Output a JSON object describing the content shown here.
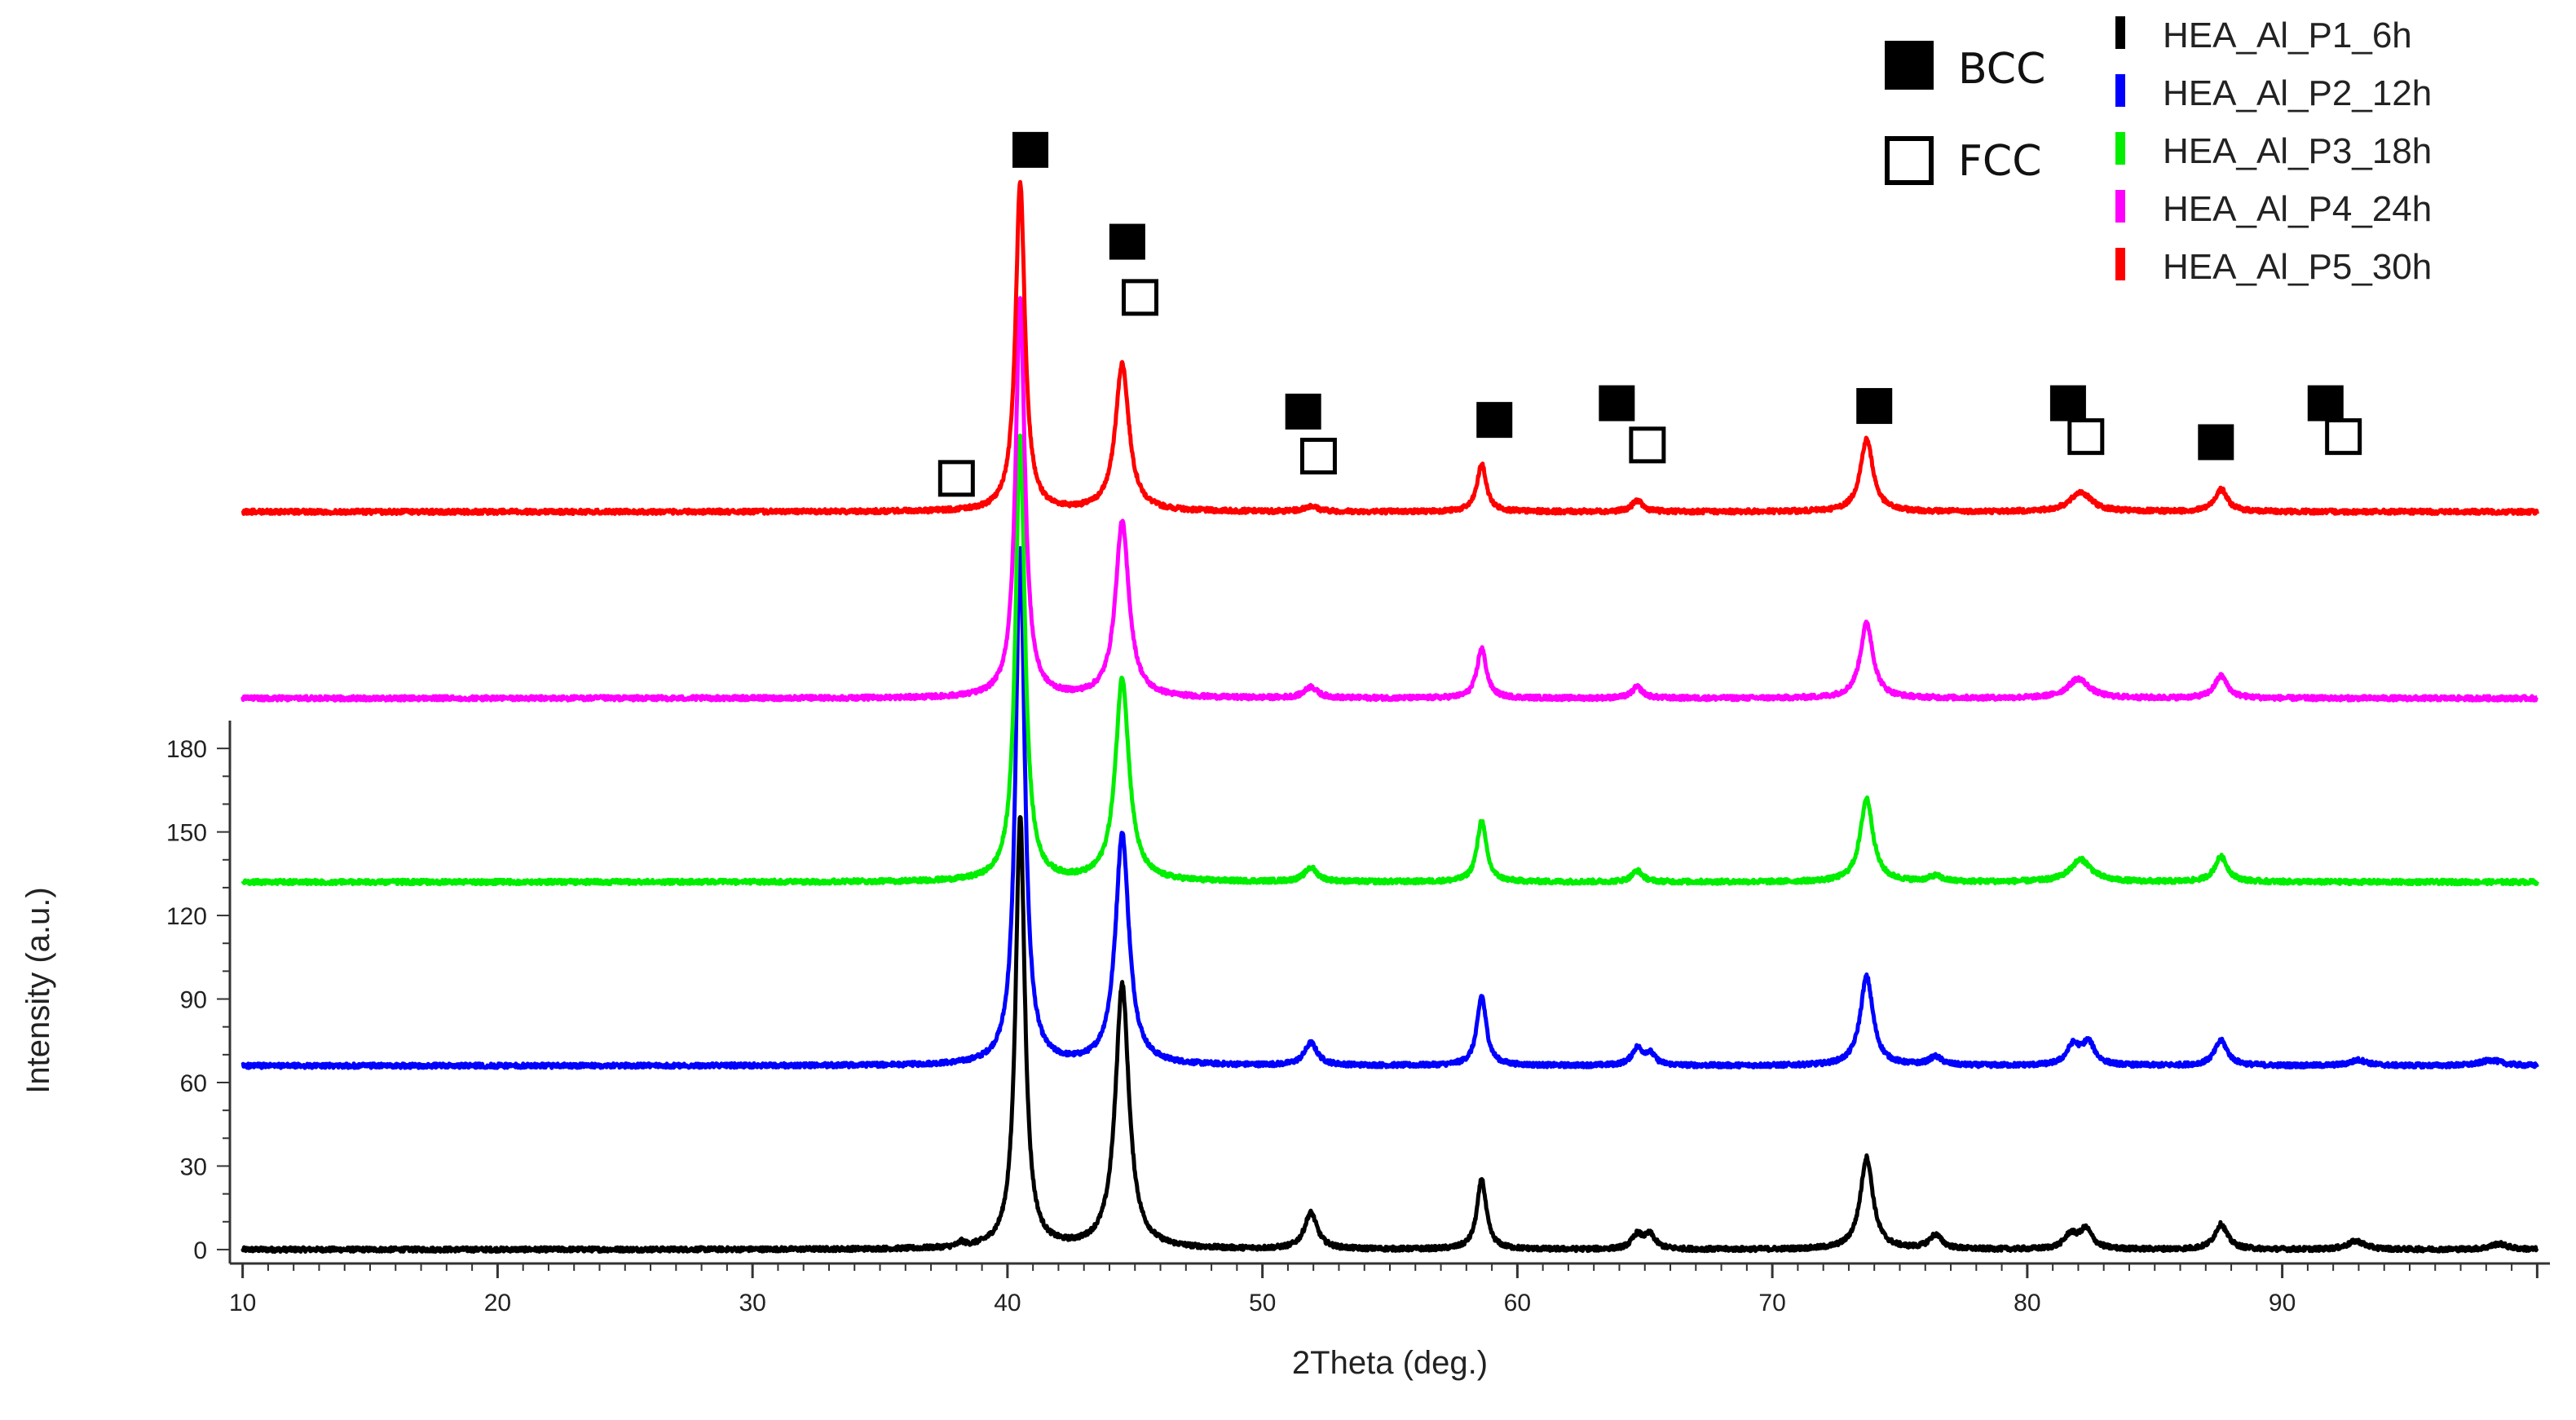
{
  "chart_data": {
    "type": "line",
    "xlabel": "2Theta (deg.)",
    "ylabel": "Intensity (a.u.)",
    "xlim": [
      9.5,
      100.5
    ],
    "ylim": [
      -5,
      190
    ],
    "x_ticks": [
      10,
      20,
      30,
      40,
      50,
      60,
      70,
      80,
      90
    ],
    "y_ticks": [
      0,
      30,
      60,
      90,
      120,
      150,
      180
    ],
    "grid": false,
    "legend_position": "top-right",
    "series_note": "Patterns are vertically stacked; each series gives its baseline offset and peaks (position, height) in y-axis units.",
    "series": [
      {
        "name": "HEA_Al_P1_6h",
        "color": "#000000",
        "baseline": 0,
        "peaks": [
          [
            38.2,
            1.5,
            0.15
          ],
          [
            40.5,
            155,
            0.22
          ],
          [
            44.5,
            95,
            0.32
          ],
          [
            51.9,
            13,
            0.3
          ],
          [
            58.6,
            25,
            0.22
          ],
          [
            64.7,
            5,
            0.25
          ],
          [
            65.2,
            5,
            0.25
          ],
          [
            73.7,
            33,
            0.3
          ],
          [
            76.4,
            5,
            0.3
          ],
          [
            81.7,
            5,
            0.3
          ],
          [
            82.3,
            7,
            0.3
          ],
          [
            87.6,
            9,
            0.3
          ],
          [
            92.9,
            3,
            0.4
          ],
          [
            98.5,
            2,
            0.4
          ]
        ]
      },
      {
        "name": "HEA_Al_P2_12h",
        "color": "#0000ff",
        "baseline": 66,
        "peaks": [
          [
            40.5,
            185,
            0.22
          ],
          [
            44.5,
            83,
            0.32
          ],
          [
            51.9,
            8,
            0.3
          ],
          [
            58.6,
            25,
            0.22
          ],
          [
            64.7,
            6,
            0.25
          ],
          [
            65.2,
            4,
            0.25
          ],
          [
            73.7,
            32,
            0.3
          ],
          [
            76.4,
            3,
            0.3
          ],
          [
            81.8,
            7,
            0.3
          ],
          [
            82.4,
            8,
            0.3
          ],
          [
            87.6,
            9,
            0.3
          ],
          [
            93,
            2,
            0.4
          ],
          [
            98.2,
            2,
            0.5
          ]
        ]
      },
      {
        "name": "HEA_Al_P3_18h",
        "color": "#00ee00",
        "baseline": 132,
        "peaks": [
          [
            40.5,
            160,
            0.22
          ],
          [
            44.5,
            73,
            0.32
          ],
          [
            51.9,
            5,
            0.3
          ],
          [
            58.6,
            22,
            0.22
          ],
          [
            64.7,
            4,
            0.25
          ],
          [
            73.7,
            30,
            0.3
          ],
          [
            76.4,
            2,
            0.3
          ],
          [
            82.1,
            8,
            0.5
          ],
          [
            87.6,
            9,
            0.3
          ]
        ]
      },
      {
        "name": "HEA_Al_P4_24h",
        "color": "#ff00ff",
        "baseline": 198,
        "peaks": [
          [
            40.5,
            143,
            0.22
          ],
          [
            44.5,
            63,
            0.32
          ],
          [
            51.9,
            4,
            0.3
          ],
          [
            58.6,
            18,
            0.22
          ],
          [
            64.7,
            4,
            0.25
          ],
          [
            73.7,
            27,
            0.3
          ],
          [
            82,
            7,
            0.5
          ],
          [
            87.6,
            8,
            0.3
          ]
        ]
      },
      {
        "name": "HEA_Al_P5_30h",
        "color": "#ff0000",
        "baseline": 265,
        "peaks": [
          [
            40.5,
            118,
            0.22
          ],
          [
            44.5,
            53,
            0.32
          ],
          [
            51.9,
            2,
            0.3
          ],
          [
            58.6,
            17,
            0.22
          ],
          [
            64.7,
            4,
            0.25
          ],
          [
            73.7,
            26,
            0.3
          ],
          [
            82.1,
            7,
            0.5
          ],
          [
            87.6,
            8,
            0.3
          ]
        ]
      }
    ],
    "phase_markers": {
      "BCC": [
        [
          40.9,
          395
        ],
        [
          44.7,
          362
        ],
        [
          51.6,
          301
        ],
        [
          59.1,
          298
        ],
        [
          63.9,
          304
        ],
        [
          74.0,
          303
        ],
        [
          81.6,
          304
        ],
        [
          87.4,
          290
        ],
        [
          91.7,
          304
        ]
      ],
      "FCC": [
        [
          38.0,
          277
        ],
        [
          45.2,
          342
        ],
        [
          52.2,
          285
        ],
        [
          65.1,
          289
        ],
        [
          82.3,
          292
        ],
        [
          92.4,
          292
        ]
      ]
    }
  },
  "legend": {
    "phases": [
      {
        "label": "BCC",
        "symbol": "filled-square"
      },
      {
        "label": "FCC",
        "symbol": "open-square"
      }
    ]
  }
}
